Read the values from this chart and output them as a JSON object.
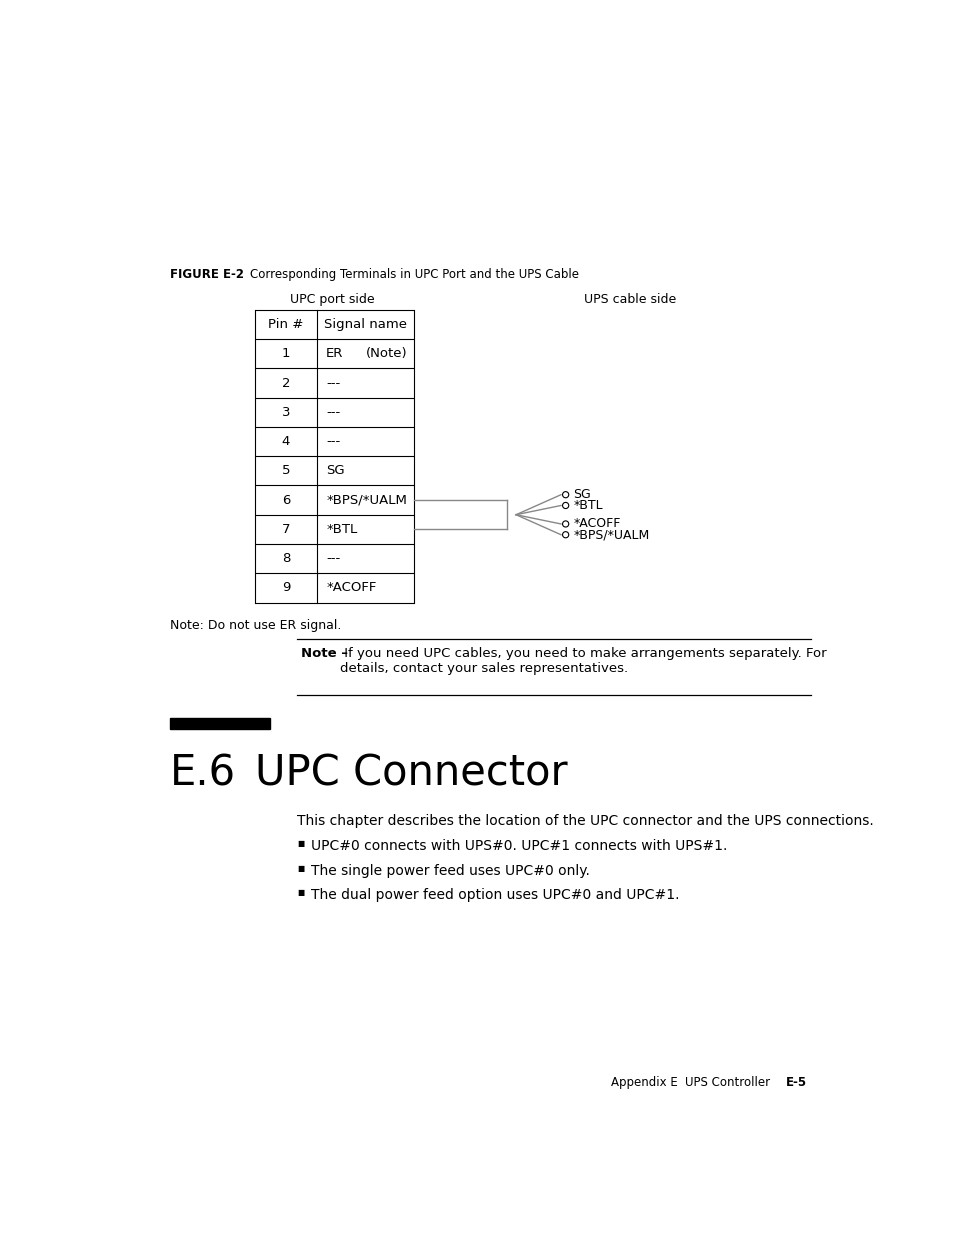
{
  "bg_color": "#ffffff",
  "figure_caption_bold": "FIGURE E-2",
  "figure_caption_rest": "    Corresponding Terminals in UPC Port and the UPS Cable",
  "upc_port_label": "UPC port side",
  "ups_cable_label": "UPS cable side",
  "table_pins": [
    "Pin #",
    "1",
    "2",
    "3",
    "4",
    "5",
    "6",
    "7",
    "8",
    "9"
  ],
  "table_signals": [
    "Signal name",
    "ER      (Note)",
    "---",
    "---",
    "---",
    "SG",
    "*BPS/*UALM",
    "*BTL",
    "---",
    "*ACOFF"
  ],
  "cable_labels": [
    "SG",
    "*BTL",
    "*ACOFF",
    "*BPS/*UALM"
  ],
  "note_text": "Note: Do not use ER signal.",
  "note_box_bold": "Note –",
  "note_box_rest": " If you need UPC cables, you need to make arrangements separately. For\ndetails, contact your sales representatives.",
  "section_number": "E.6",
  "section_title": "UPC Connector",
  "body_text": "This chapter describes the location of the UPC connector and the UPS connections.",
  "bullets": [
    "UPC#0 connects with UPS#0. UPC#1 connects with UPS#1.",
    "The single power feed uses UPC#0 only.",
    "The dual power feed option uses UPC#0 and UPC#1."
  ],
  "footer_left": "Appendix E",
  "footer_mid": "UPS Controller",
  "footer_right": "E-5"
}
